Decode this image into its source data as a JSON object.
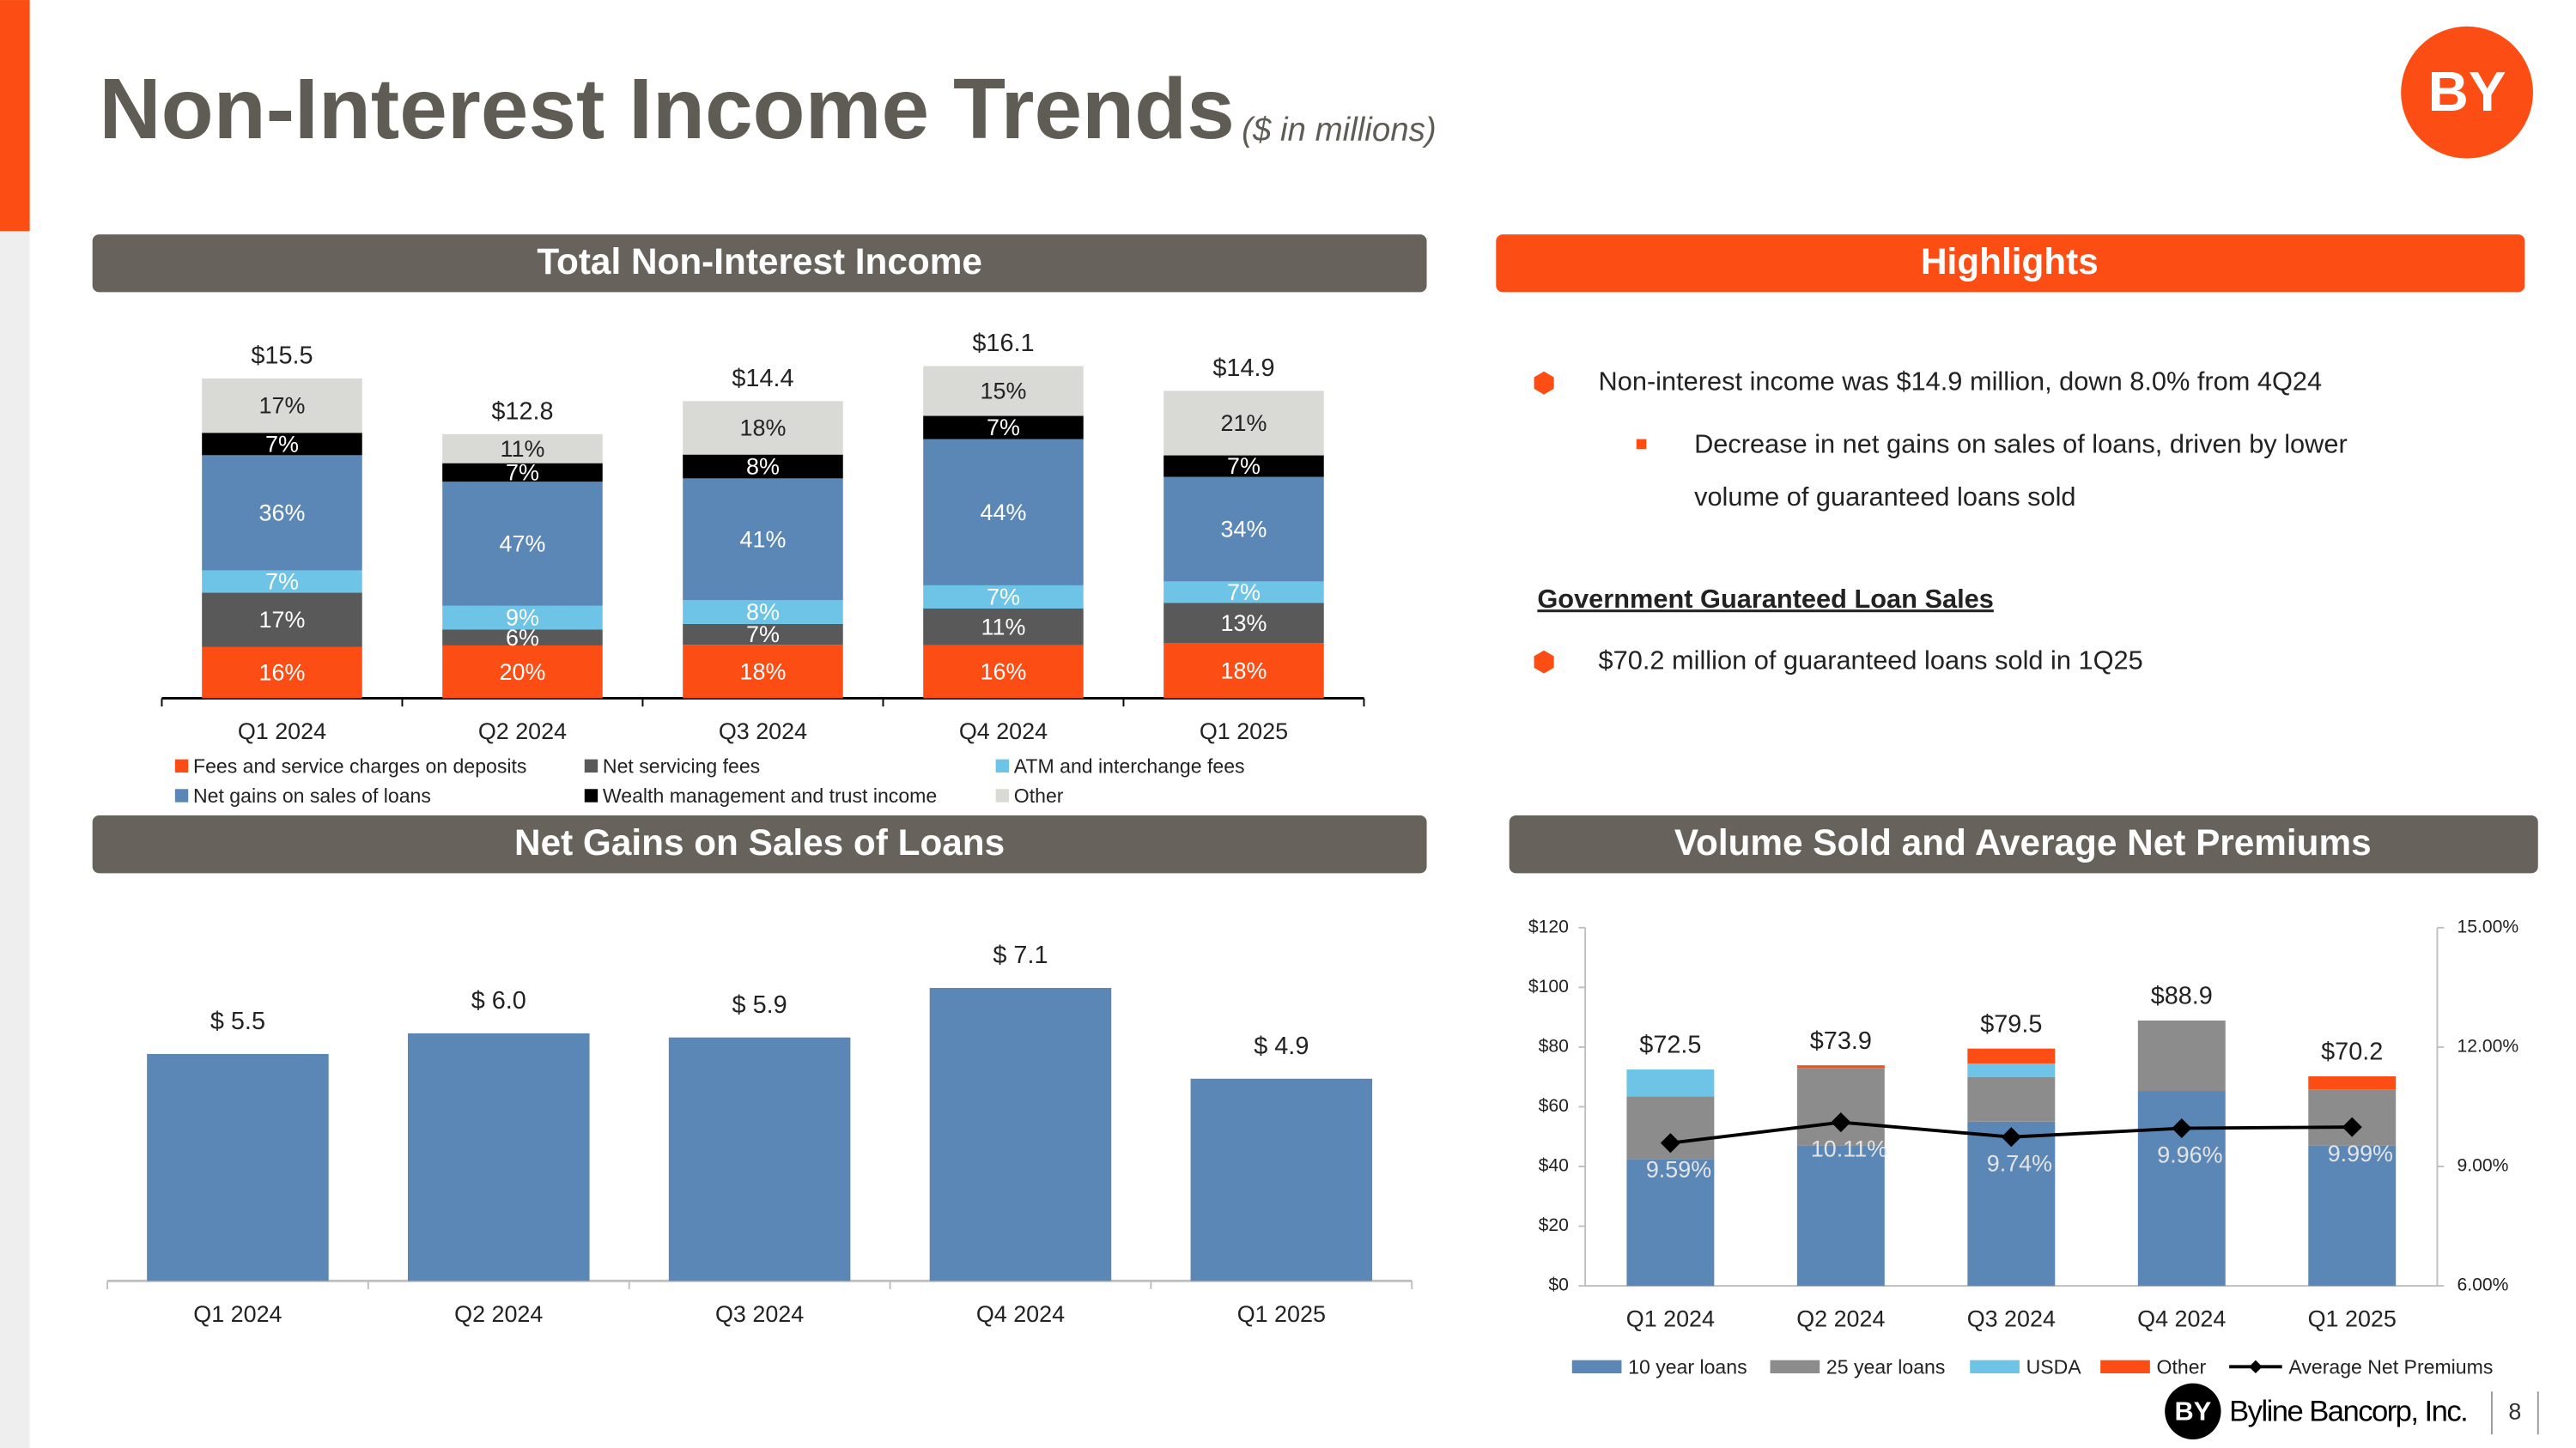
{
  "header": {
    "title": "Non-Interest Income Trends",
    "subtitle": "($ in millions)",
    "logo": "BY"
  },
  "highlights": {
    "title": "Highlights",
    "bullet_1": "Non-interest income was $14.9 million, down 8.0% from 4Q24",
    "sub_bullet_lines": [
      "Decrease in net gains on sales of loans, driven by lower",
      "volume of guaranteed loans sold"
    ],
    "subheading": "Government Guaranteed Loan Sales",
    "bullet_2": "$70.2 million of guaranteed loans sold in 1Q25"
  },
  "footer": {
    "logo": "BY",
    "company": "Byline Bancorp, Inc.",
    "page": "8"
  },
  "chart_data": [
    {
      "type": "stacked_percent_bar",
      "title": "Total Non-Interest Income",
      "categories": [
        "Q1 2024",
        "Q2 2024",
        "Q3 2024",
        "Q4 2024",
        "Q1 2025"
      ],
      "totals": [
        15.5,
        12.8,
        14.4,
        16.1,
        14.9
      ],
      "total_labels": [
        "$15.5",
        "$12.8",
        "$14.4",
        "$16.1",
        "$14.9"
      ],
      "series": [
        {
          "name": "Fees and service charges on deposits",
          "color": "#fc4e14",
          "values": [
            16,
            20,
            18,
            16,
            18
          ],
          "value_labels": [
            "16%",
            "20%",
            "18%",
            "16%",
            "18%"
          ]
        },
        {
          "name": "Net servicing fees",
          "color": "#595959",
          "values": [
            17,
            6,
            7,
            11,
            13
          ],
          "value_labels": [
            "17%",
            "6%",
            "7%",
            "11%",
            "13%"
          ]
        },
        {
          "name": "ATM and interchange fees",
          "color": "#6ec4e6",
          "values": [
            7,
            9,
            8,
            7,
            7
          ],
          "value_labels": [
            "7%",
            "9%",
            "8%",
            "7%",
            "7%"
          ]
        },
        {
          "name": "Net gains on sales of loans",
          "color": "#5b87b6",
          "values": [
            36,
            47,
            41,
            44,
            34
          ],
          "value_labels": [
            "36%",
            "47%",
            "41%",
            "44%",
            "34%"
          ]
        },
        {
          "name": "Wealth management and trust income",
          "color": "#000000",
          "values": [
            7,
            7,
            8,
            7,
            7
          ],
          "value_labels": [
            "7%",
            "7%",
            "8%",
            "7%",
            "7%"
          ]
        },
        {
          "name": "Other",
          "color": "#d9d9d6",
          "values": [
            17,
            11,
            18,
            15,
            21
          ],
          "value_labels": [
            "17%",
            "11%",
            "18%",
            "15%",
            "21%"
          ]
        }
      ]
    },
    {
      "type": "bar",
      "title": "Net Gains on Sales of Loans",
      "categories": [
        "Q1 2024",
        "Q2 2024",
        "Q3 2024",
        "Q4 2024",
        "Q1 2025"
      ],
      "values": [
        5.5,
        6.0,
        5.9,
        7.1,
        4.9
      ],
      "value_labels": [
        "$ 5.5",
        "$ 6.0",
        "$ 5.9",
        "$ 7.1",
        "$ 4.9"
      ],
      "color": "#5b87b6"
    },
    {
      "type": "combo",
      "title": "Volume Sold and Average Net Premiums",
      "categories": [
        "Q1 2024",
        "Q2 2024",
        "Q3 2024",
        "Q4 2024",
        "Q1 2025"
      ],
      "ylim": [
        0,
        120
      ],
      "yticks": [
        {
          "value": 0,
          "label": "$0"
        },
        {
          "value": 20,
          "label": "$20"
        },
        {
          "value": 40,
          "label": "$40"
        },
        {
          "value": 60,
          "label": "$60"
        },
        {
          "value": 80,
          "label": "$80"
        },
        {
          "value": 100,
          "label": "$100"
        },
        {
          "value": 120,
          "label": "$120"
        }
      ],
      "y2lim": [
        6,
        15
      ],
      "y2ticks": [
        {
          "value": 6,
          "label": "6.00%"
        },
        {
          "value": 9,
          "label": "9.00%"
        },
        {
          "value": 12,
          "label": "12.00%"
        },
        {
          "value": 15,
          "label": "15.00%"
        }
      ],
      "totals": [
        72.5,
        73.9,
        79.5,
        88.9,
        70.2
      ],
      "total_labels": [
        "$72.5",
        "$73.9",
        "$79.5",
        "$88.9",
        "$70.2"
      ],
      "series": [
        {
          "name": "10 year loans",
          "type": "bar",
          "color": "#5b87b6",
          "values": [
            42.5,
            47,
            55,
            65.3,
            47
          ]
        },
        {
          "name": "25 year loans",
          "type": "bar",
          "color": "#8c8c8c",
          "values": [
            21,
            26,
            15,
            23.6,
            18.8
          ]
        },
        {
          "name": "USDA",
          "type": "bar",
          "color": "#6ec4e6",
          "values": [
            9,
            0,
            4.5,
            0,
            0
          ]
        },
        {
          "name": "Other",
          "type": "bar",
          "color": "#fc4e14",
          "values": [
            0,
            0.9,
            5,
            0,
            4.4
          ]
        },
        {
          "name": "Average Net Premiums",
          "type": "line",
          "axis": "y2",
          "color": "#000000",
          "values": [
            9.59,
            10.11,
            9.74,
            9.96,
            9.99
          ],
          "value_labels": [
            "9.59%",
            "10.11%",
            "9.74%",
            "9.96%",
            "9.99%"
          ]
        }
      ]
    }
  ]
}
